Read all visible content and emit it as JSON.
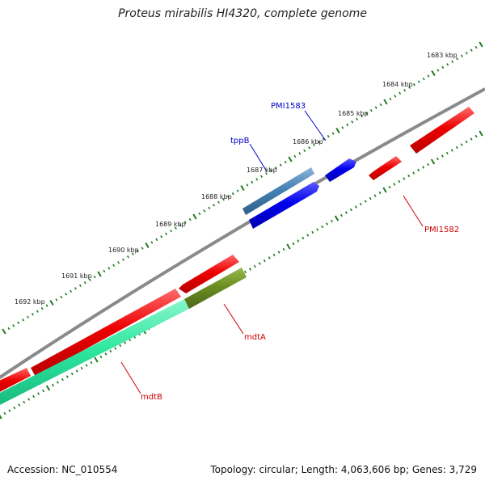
{
  "title": "Proteus mirabilis HI4320, complete genome",
  "footer": {
    "accession": "Accession: NC_010554",
    "summary": "Topology: circular; Length: 4,063,606 bp; Genes: 3,729"
  },
  "colors": {
    "backbone": "#8a8a8a",
    "ticks": "#1e7a1e",
    "forward_cds": "#0000ee",
    "forward_cds_light": "#4682b4",
    "reverse_cds": "#ee0000",
    "reverse_cds_alt1": "#2ee8a0",
    "reverse_cds_alt2": "#6b8e23",
    "forward_label": "#0000cc",
    "reverse_label": "#cc0000"
  },
  "kbp_labels": [
    "1683 kbp",
    "1684 kbp",
    "1685 kbp",
    "1686 kbp",
    "1687 kbp",
    "1688 kbp",
    "1689 kbp",
    "1690 kbp",
    "1691 kbp",
    "1692 kbp"
  ],
  "gene_labels": {
    "pmi1583": "PMI1583",
    "tppb": "tppB",
    "pmi1582": "PMI1582",
    "mdta": "mdtA",
    "mdtb": "mdtB"
  }
}
